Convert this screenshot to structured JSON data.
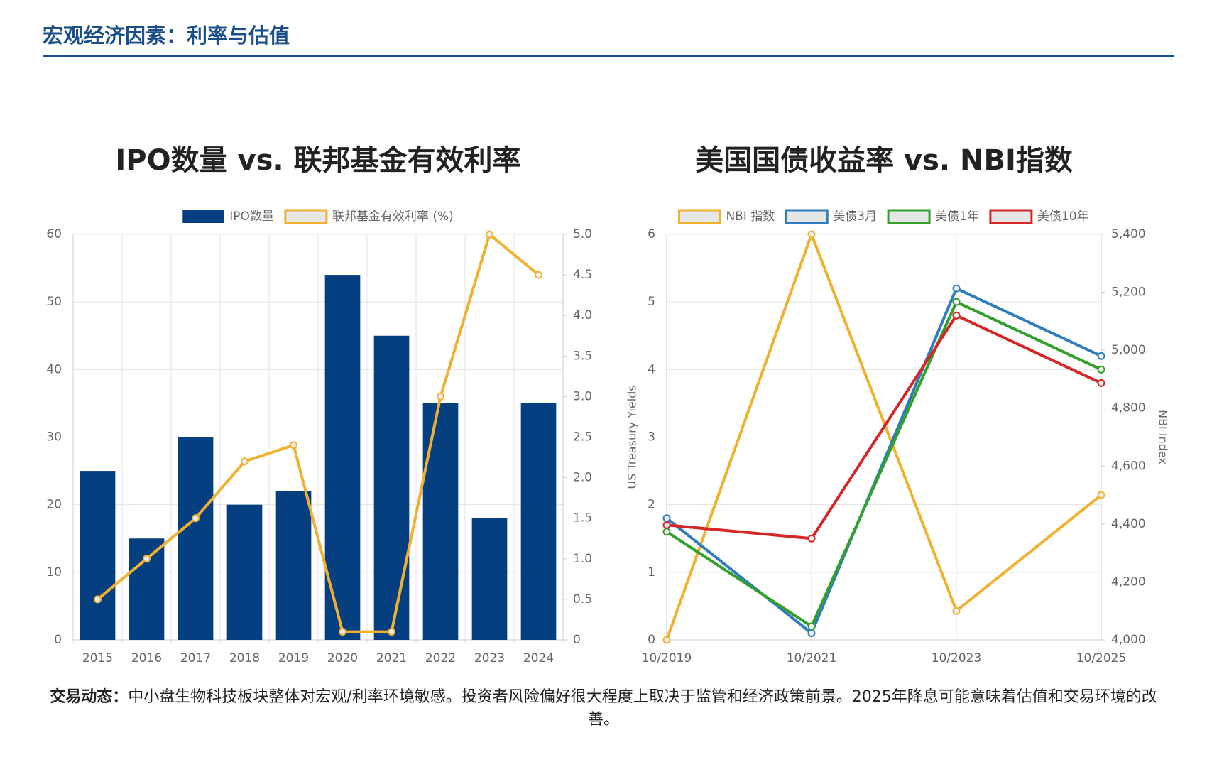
{
  "header": {
    "title": "宏观经济因素：利率与估值"
  },
  "chart_data": [
    {
      "type": "bar",
      "title": "IPO数量 vs. 联邦基金有效利率",
      "categories": [
        "2015",
        "2016",
        "2017",
        "2018",
        "2019",
        "2020",
        "2021",
        "2022",
        "2023",
        "2024"
      ],
      "series": [
        {
          "name": "IPO数量",
          "type": "bar",
          "color": "#063f80",
          "values": [
            25,
            15,
            30,
            20,
            22,
            54,
            45,
            35,
            18,
            35
          ]
        },
        {
          "name": "联邦基金有效利率 (%)",
          "type": "line",
          "axis": "y2",
          "color": "#f0b030",
          "values": [
            0.5,
            1.0,
            1.5,
            2.2,
            2.4,
            0.1,
            0.1,
            3.0,
            5.0,
            4.5
          ]
        }
      ],
      "ylim": [
        0,
        60
      ],
      "yticks": [
        0,
        10,
        20,
        30,
        40,
        50,
        60
      ],
      "y2lim": [
        0,
        5
      ],
      "y2ticks": [
        0,
        0.5,
        {
          "value": 1,
          "label": "1.0"
        },
        1.5,
        {
          "value": 2,
          "label": "2.0"
        },
        2.5,
        {
          "value": 3,
          "label": "3.0"
        },
        3.5,
        {
          "value": 4,
          "label": "4.0"
        },
        4.5,
        {
          "value": 5,
          "label": "5.0"
        }
      ],
      "grid": true,
      "legend": "top"
    },
    {
      "type": "line",
      "title": "美国国债收益率 vs. NBI指数",
      "categories": [
        "10/2019",
        "10/2021",
        "10/2023",
        "10/2025"
      ],
      "series": [
        {
          "name": "NBI 指数",
          "axis": "y2",
          "color": "#f0b030",
          "values": [
            4000,
            5400,
            4100,
            4500
          ]
        },
        {
          "name": "美债3月",
          "color": "#2e7dbf",
          "values": [
            1.8,
            0.1,
            5.2,
            4.2
          ]
        },
        {
          "name": "美债1年",
          "color": "#33a02c",
          "values": [
            1.6,
            0.2,
            5.0,
            4.0
          ]
        },
        {
          "name": "美债10年",
          "color": "#d62728",
          "values": [
            1.7,
            1.5,
            4.8,
            3.8
          ]
        }
      ],
      "ylabel": "US Treasury Yields",
      "y2label": "NBI Index",
      "ylim": [
        0,
        6
      ],
      "yticks": [
        0,
        1,
        2,
        3,
        4,
        5,
        6
      ],
      "y2lim": [
        4000,
        5400
      ],
      "y2ticks": [
        {
          "value": 4000,
          "label": "4,000"
        },
        {
          "value": 4200,
          "label": "4,200"
        },
        {
          "value": 4400,
          "label": "4,400"
        },
        {
          "value": 4600,
          "label": "4,600"
        },
        {
          "value": 4800,
          "label": "4,800"
        },
        {
          "value": 5000,
          "label": "5,000"
        },
        {
          "value": 5200,
          "label": "5,200"
        },
        {
          "value": 5400,
          "label": "5,400"
        }
      ],
      "grid": true,
      "legend": "top"
    }
  ],
  "footer": {
    "label": "交易动态：",
    "text": "中小盘生物科技板块整体对宏观/利率环境敏感。投资者风险偏好很大程度上取决于监管和经济政策前景。2025年降息可能意味着估值和交易环境的改善。"
  }
}
